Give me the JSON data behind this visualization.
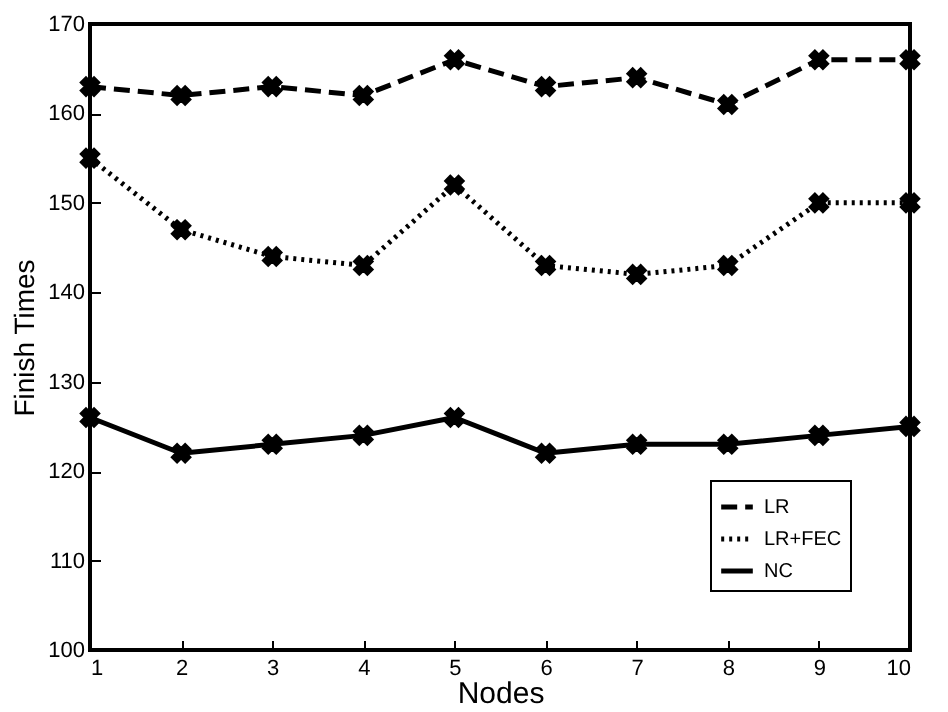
{
  "chart_data": {
    "type": "line",
    "xlabel": "Nodes",
    "ylabel": "Finish Times",
    "x": [
      1,
      2,
      3,
      4,
      5,
      6,
      7,
      8,
      9,
      10
    ],
    "xlim": [
      1,
      10
    ],
    "xticks": [
      1,
      2,
      3,
      4,
      5,
      6,
      7,
      8,
      9,
      10
    ],
    "ylim": [
      100,
      170
    ],
    "yticks": [
      100,
      110,
      120,
      130,
      140,
      150,
      160,
      170
    ],
    "grid": false,
    "legend": "bottom right",
    "marker": "cross",
    "series": [
      {
        "name": "LR",
        "color": "#000000",
        "line_style": "dashed",
        "values": [
          163,
          162,
          163,
          162,
          166,
          163,
          164,
          161,
          166,
          166
        ]
      },
      {
        "name": "LR+FEC",
        "color": "#000000",
        "line_style": "dotted",
        "values": [
          155,
          147,
          144,
          143,
          152,
          143,
          142,
          143,
          150,
          150
        ]
      },
      {
        "name": "NC",
        "color": "#000000",
        "line_style": "solid",
        "values": [
          126,
          122,
          123,
          124,
          126,
          122,
          123,
          123,
          124,
          125
        ]
      }
    ]
  }
}
